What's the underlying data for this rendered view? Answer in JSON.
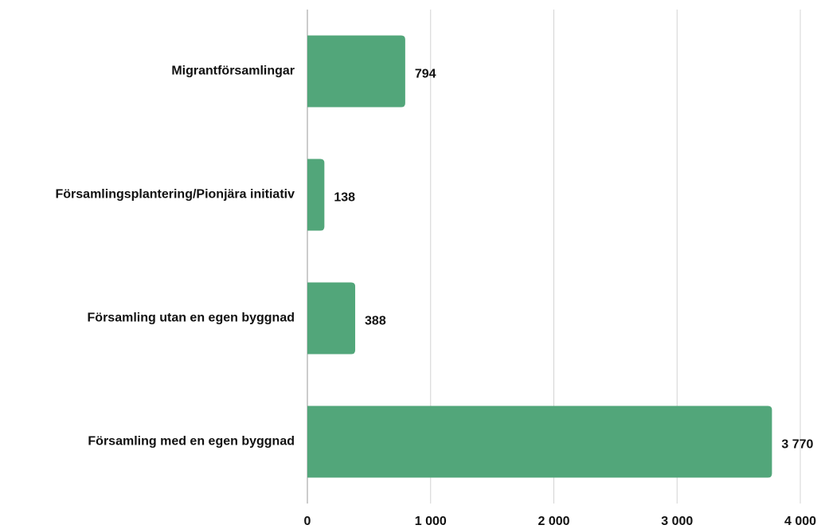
{
  "chart_data": {
    "type": "hbar",
    "categories": [
      "Migrantförsamlingar",
      "Församlingsplantering/Pionjära initiativ",
      "Församling utan en egen byggnad",
      "Församling med en egen byggnad"
    ],
    "values": [
      794,
      138,
      388,
      3770
    ],
    "value_labels": [
      "794",
      "138",
      "388",
      "3 770"
    ],
    "color": "#52a67a",
    "xlim": [
      0,
      4000
    ],
    "xticks": [
      0,
      {
        "value": 1000,
        "label": "1 000"
      },
      {
        "value": 2000,
        "label": "2 000"
      },
      {
        "value": 3000,
        "label": "3 000"
      },
      {
        "value": 4000,
        "label": "4 000"
      }
    ],
    "grid": true
  }
}
